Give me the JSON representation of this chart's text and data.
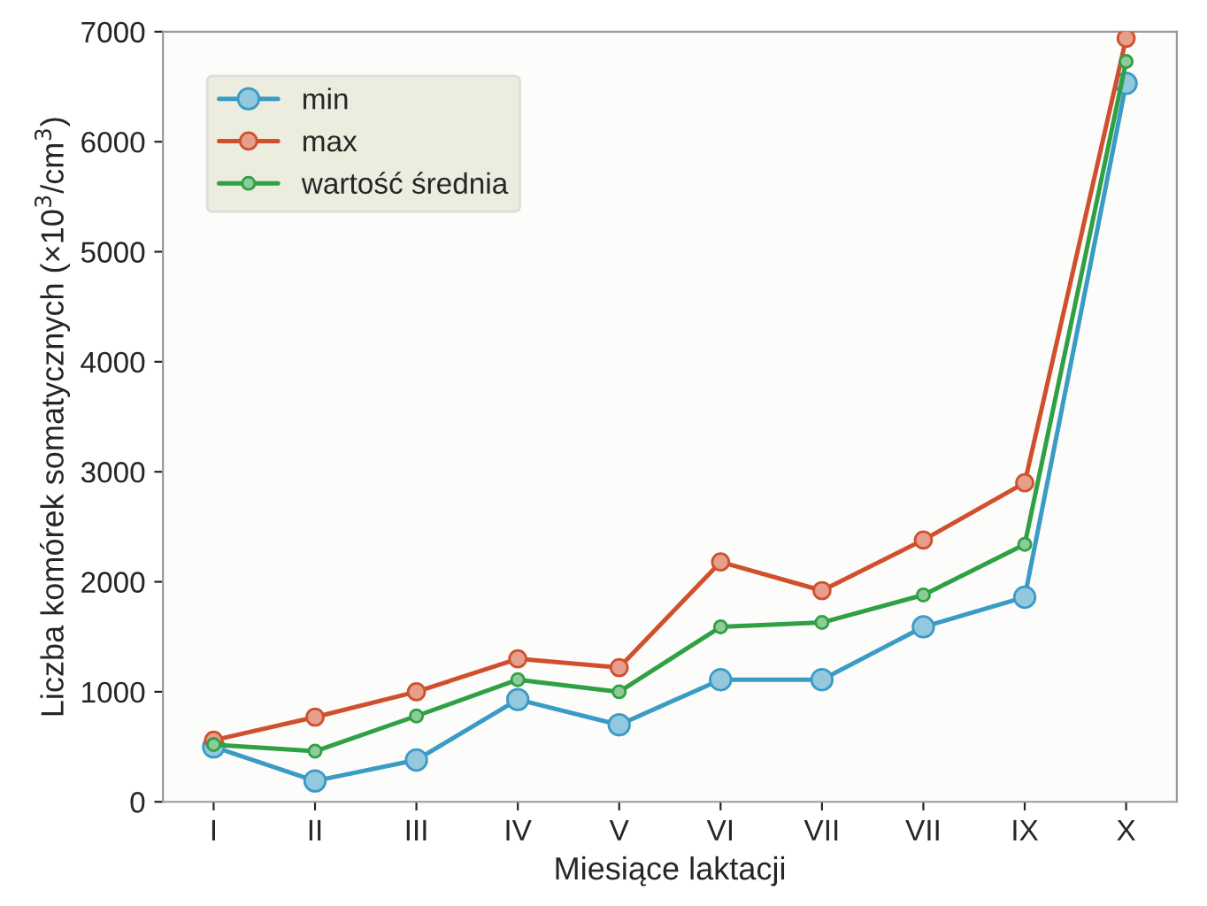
{
  "chart_data": {
    "type": "line",
    "xlabel": "Miesiące laktacji",
    "ylabel": "Liczba komórek somatycznych (×10$^{3}$/cm$^{3}$)",
    "categories": [
      "I",
      "II",
      "III",
      "IV",
      "V",
      "VI",
      "VII",
      "VII",
      "IX",
      "X"
    ],
    "series": [
      {
        "name": "min",
        "color": "#3a9bc4",
        "values": [
          500,
          190,
          380,
          930,
          700,
          1110,
          1110,
          1590,
          1860,
          6530
        ]
      },
      {
        "name": "max",
        "color": "#d0502e",
        "values": [
          560,
          770,
          1000,
          1300,
          1220,
          2180,
          1920,
          2380,
          2900,
          6940
        ]
      },
      {
        "name": "wartość średnia",
        "color": "#2fa043",
        "values": [
          520,
          460,
          780,
          1110,
          1000,
          1590,
          1630,
          1880,
          2340,
          6730
        ]
      }
    ],
    "ylim": [
      0,
      7000
    ],
    "yticks": [
      0,
      1000,
      2000,
      3000,
      4000,
      5000,
      6000,
      7000
    ],
    "legend": "top left",
    "marker": "circle",
    "line_style": "solid",
    "grid": false
  }
}
